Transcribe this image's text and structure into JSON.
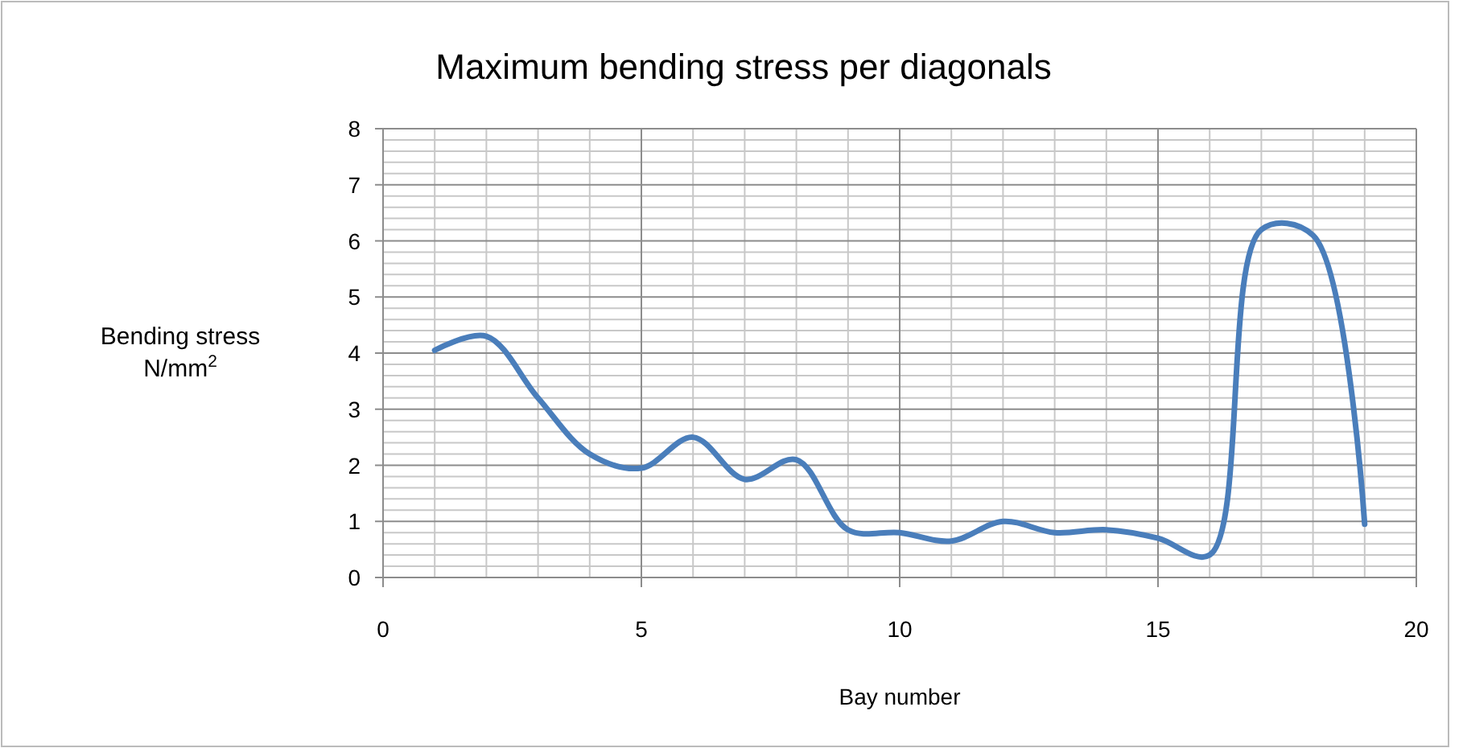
{
  "chart_data": {
    "type": "line",
    "title": "Maximum bending stress per diagonals",
    "xlabel": "Bay number",
    "ylabel": "Bending stress N/mm$^{2}$",
    "x": [
      1,
      2,
      3,
      4,
      5,
      6,
      7,
      8,
      9,
      10,
      11,
      12,
      13,
      14,
      15,
      16,
      17,
      18,
      19
    ],
    "series": [
      {
        "color": "#4a7ebb",
        "values": [
          4.05,
          4.3,
          3.2,
          2.2,
          1.95,
          2.5,
          1.75,
          2.1,
          0.85,
          0.8,
          0.65,
          1.0,
          0.8,
          0.85,
          0.7,
          0.4,
          6.2,
          6.1,
          0.95
        ]
      }
    ],
    "xlim": [
      0,
      20
    ],
    "xticks": [
      0,
      5,
      10,
      15,
      20
    ],
    "ylim": [
      0,
      8
    ],
    "yticks": [
      0,
      1,
      2,
      3,
      4,
      5,
      6,
      7,
      8
    ],
    "grid": true,
    "marker": "none",
    "line_style": "solid"
  }
}
